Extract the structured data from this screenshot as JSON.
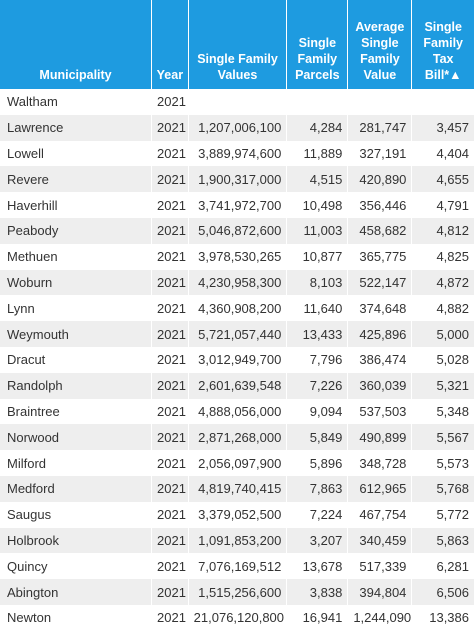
{
  "table": {
    "headers": {
      "municipality": "Municipality",
      "year": "Year",
      "sf_values": "Single Family Values",
      "sf_parcels": "Single Family Parcels",
      "avg_sf_value": "Average Single Family Value",
      "sf_tax_bill": "Single Family Tax Bill*▲"
    },
    "rows": [
      {
        "municipality": "Waltham",
        "year": "2021",
        "sf_values": "",
        "sf_parcels": "",
        "avg_sf_value": "",
        "sf_tax_bill": ""
      },
      {
        "municipality": "Lawrence",
        "year": "2021",
        "sf_values": "1,207,006,100",
        "sf_parcels": "4,284",
        "avg_sf_value": "281,747",
        "sf_tax_bill": "3,457"
      },
      {
        "municipality": "Lowell",
        "year": "2021",
        "sf_values": "3,889,974,600",
        "sf_parcels": "11,889",
        "avg_sf_value": "327,191",
        "sf_tax_bill": "4,404"
      },
      {
        "municipality": "Revere",
        "year": "2021",
        "sf_values": "1,900,317,000",
        "sf_parcels": "4,515",
        "avg_sf_value": "420,890",
        "sf_tax_bill": "4,655"
      },
      {
        "municipality": "Haverhill",
        "year": "2021",
        "sf_values": "3,741,972,700",
        "sf_parcels": "10,498",
        "avg_sf_value": "356,446",
        "sf_tax_bill": "4,791"
      },
      {
        "municipality": "Peabody",
        "year": "2021",
        "sf_values": "5,046,872,600",
        "sf_parcels": "11,003",
        "avg_sf_value": "458,682",
        "sf_tax_bill": "4,812"
      },
      {
        "municipality": "Methuen",
        "year": "2021",
        "sf_values": "3,978,530,265",
        "sf_parcels": "10,877",
        "avg_sf_value": "365,775",
        "sf_tax_bill": "4,825"
      },
      {
        "municipality": "Woburn",
        "year": "2021",
        "sf_values": "4,230,958,300",
        "sf_parcels": "8,103",
        "avg_sf_value": "522,147",
        "sf_tax_bill": "4,872"
      },
      {
        "municipality": "Lynn",
        "year": "2021",
        "sf_values": "4,360,908,200",
        "sf_parcels": "11,640",
        "avg_sf_value": "374,648",
        "sf_tax_bill": "4,882"
      },
      {
        "municipality": "Weymouth",
        "year": "2021",
        "sf_values": "5,721,057,440",
        "sf_parcels": "13,433",
        "avg_sf_value": "425,896",
        "sf_tax_bill": "5,000"
      },
      {
        "municipality": "Dracut",
        "year": "2021",
        "sf_values": "3,012,949,700",
        "sf_parcels": "7,796",
        "avg_sf_value": "386,474",
        "sf_tax_bill": "5,028"
      },
      {
        "municipality": "Randolph",
        "year": "2021",
        "sf_values": "2,601,639,548",
        "sf_parcels": "7,226",
        "avg_sf_value": "360,039",
        "sf_tax_bill": "5,321"
      },
      {
        "municipality": "Braintree",
        "year": "2021",
        "sf_values": "4,888,056,000",
        "sf_parcels": "9,094",
        "avg_sf_value": "537,503",
        "sf_tax_bill": "5,348"
      },
      {
        "municipality": "Norwood",
        "year": "2021",
        "sf_values": "2,871,268,000",
        "sf_parcels": "5,849",
        "avg_sf_value": "490,899",
        "sf_tax_bill": "5,567"
      },
      {
        "municipality": "Milford",
        "year": "2021",
        "sf_values": "2,056,097,900",
        "sf_parcels": "5,896",
        "avg_sf_value": "348,728",
        "sf_tax_bill": "5,573"
      },
      {
        "municipality": "Medford",
        "year": "2021",
        "sf_values": "4,819,740,415",
        "sf_parcels": "7,863",
        "avg_sf_value": "612,965",
        "sf_tax_bill": "5,768"
      },
      {
        "municipality": "Saugus",
        "year": "2021",
        "sf_values": "3,379,052,500",
        "sf_parcels": "7,224",
        "avg_sf_value": "467,754",
        "sf_tax_bill": "5,772"
      },
      {
        "municipality": "Holbrook",
        "year": "2021",
        "sf_values": "1,091,853,200",
        "sf_parcels": "3,207",
        "avg_sf_value": "340,459",
        "sf_tax_bill": "5,863"
      },
      {
        "municipality": "Quincy",
        "year": "2021",
        "sf_values": "7,076,169,512",
        "sf_parcels": "13,678",
        "avg_sf_value": "517,339",
        "sf_tax_bill": "6,281"
      },
      {
        "municipality": "Abington",
        "year": "2021",
        "sf_values": "1,515,256,600",
        "sf_parcels": "3,838",
        "avg_sf_value": "394,804",
        "sf_tax_bill": "6,506"
      },
      {
        "municipality": "Newton",
        "year": "2021",
        "sf_values": "21,076,120,800",
        "sf_parcels": "16,941",
        "avg_sf_value": "1,244,090",
        "sf_tax_bill": "13,386"
      }
    ]
  },
  "colors": {
    "header_bg": "#1e9be0",
    "header_text": "#ffffff",
    "row_stripe": "#eeeeee"
  }
}
